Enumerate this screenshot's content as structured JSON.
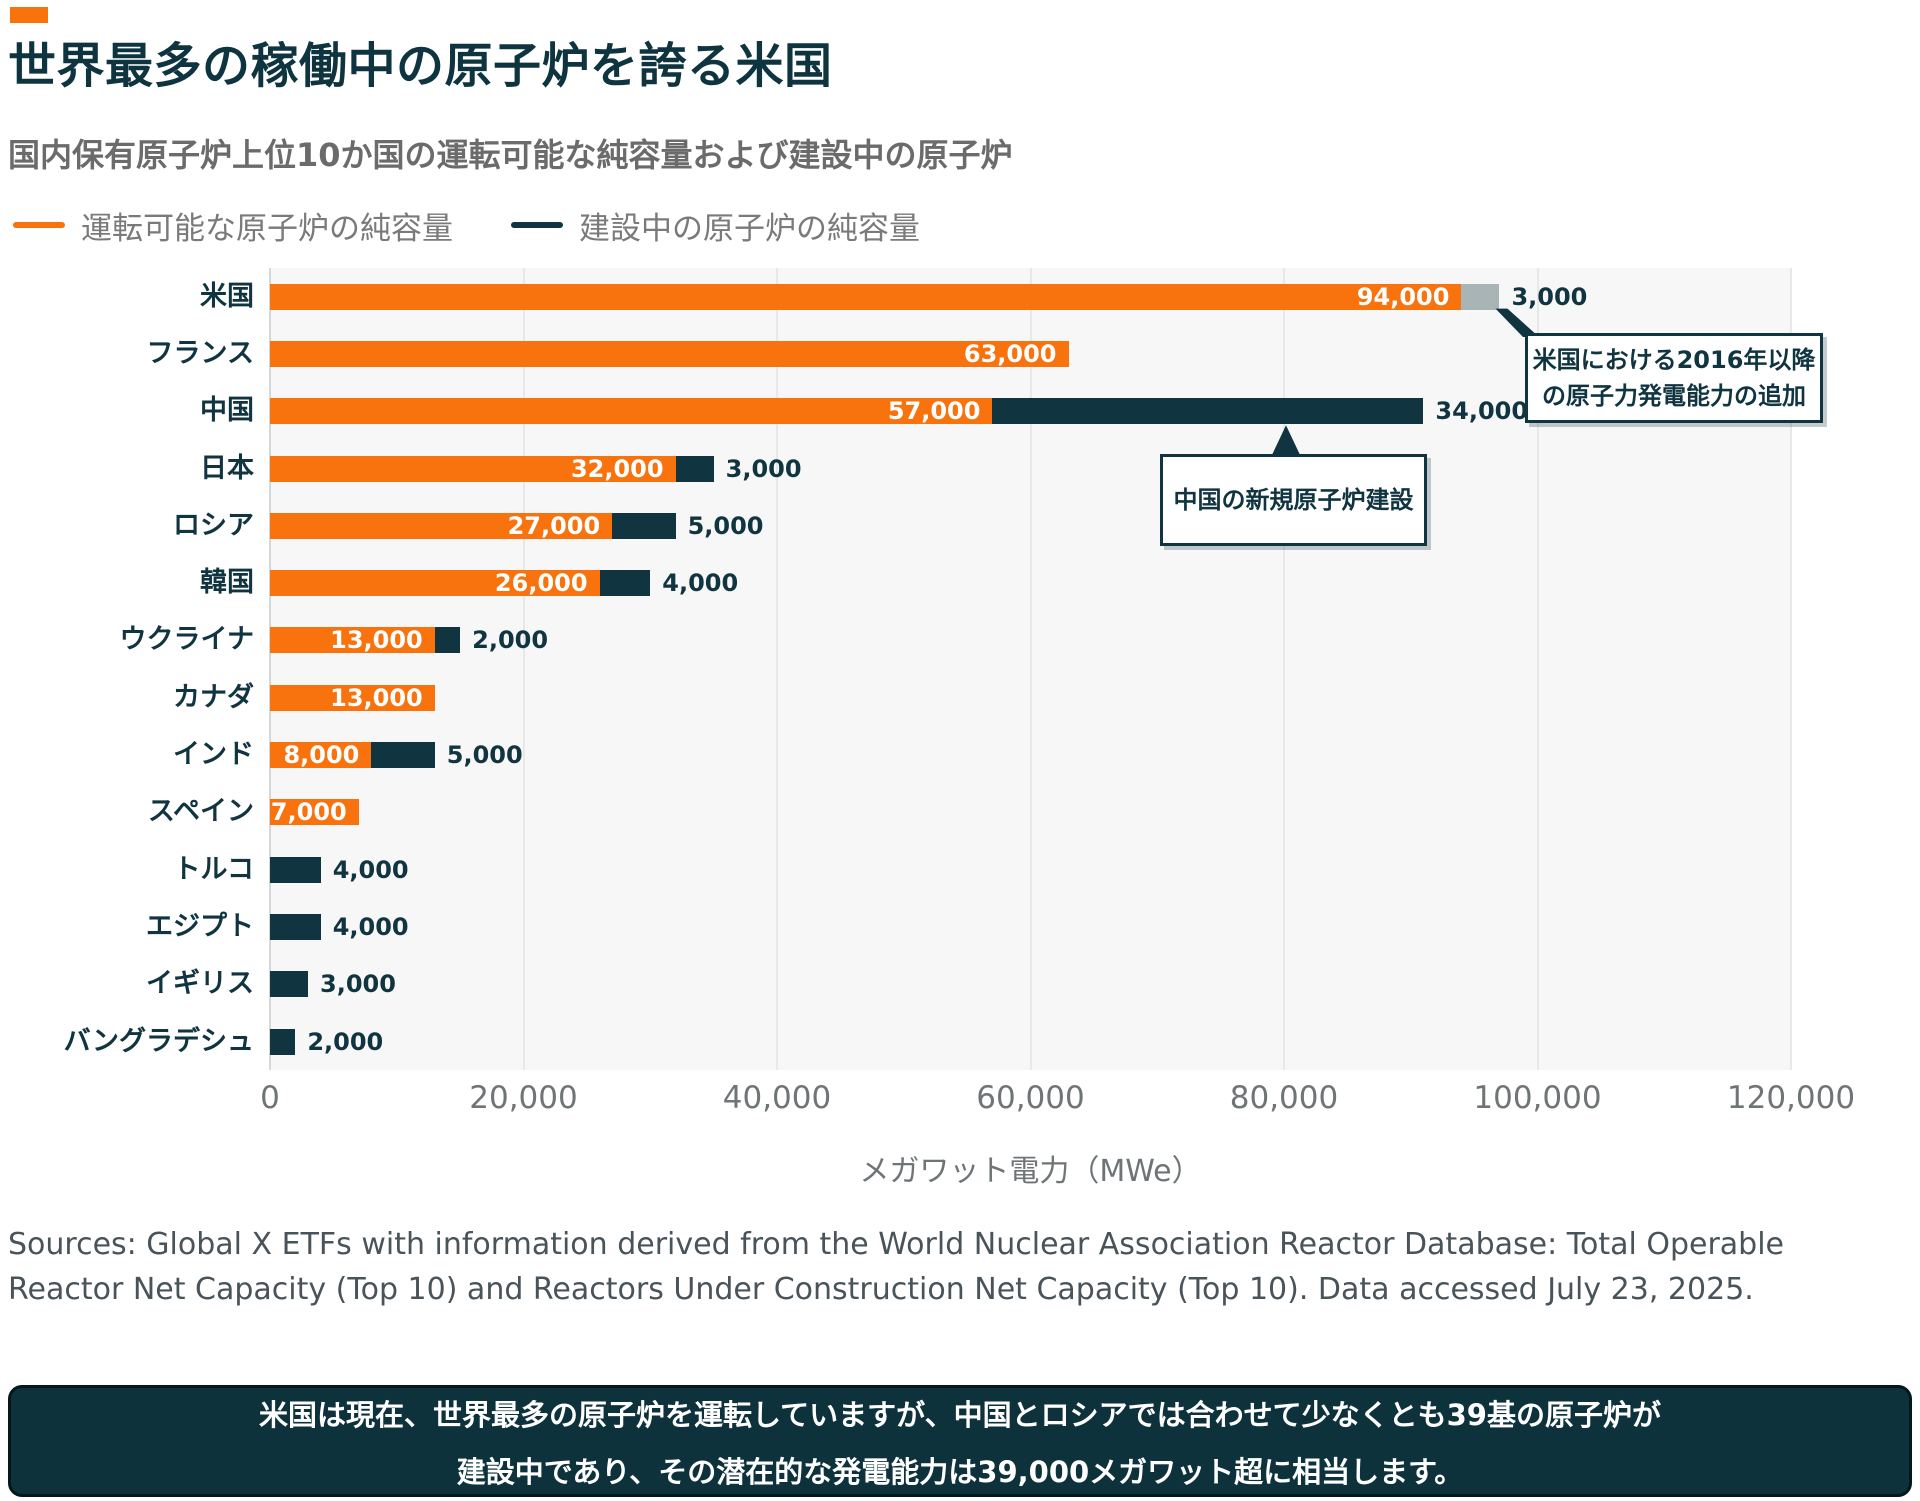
{
  "page": {
    "sources": "Sources: Global X ETFs with information derived from the World Nuclear Association Reactor Database: Total Operable Reactor Net Capacity (Top 10) and Reactors Under Construction Net Capacity (Top 10). Data accessed July 23, 2025.",
    "takeaway": {
      "line1": "米国は現在、世界最多の原子炉を運転していますが、中国とロシアでは合わせて少なくとも39基の原子炉が",
      "line2": "建設中であり、その潜在的な発電能力は39,000メガワット超に相当します。"
    }
  },
  "colors": {
    "accent_orange": "#F8720D",
    "dark_teal": "#113540",
    "title_teal": "#0E3440",
    "gray_segment": "#A9B4B6",
    "plot_bg": "#F7F7F7",
    "gridline": "#E8E8E8",
    "gridline_zero": "#D4D8D8",
    "subtitle_gray": "#6B6B6B",
    "legend_gray": "#7A7A7A",
    "tick_gray": "#6F7476",
    "sources_gray": "#49545A",
    "takeaway_bg": "#0D323C",
    "takeaway_border": "#04171D"
  },
  "chart_data": {
    "type": "bar",
    "orientation": "horizontal",
    "title": "世界最多の稼働中の原子炉を誇る米国",
    "subtitle": "国内保有原子炉上位10か国の運転可能な純容量および建設中の原子炉",
    "xlabel": "メガワット電力（MWe）",
    "unit": "MWe",
    "xlim": [
      0,
      120000
    ],
    "grid": true,
    "legend_position": "top-left",
    "xticks": [
      {
        "value": 0,
        "label": "0"
      },
      {
        "value": 20000,
        "label": "20,000"
      },
      {
        "value": 40000,
        "label": "40,000"
      },
      {
        "value": 60000,
        "label": "60,000"
      },
      {
        "value": 80000,
        "label": "80,000"
      },
      {
        "value": 100000,
        "label": "100,000"
      },
      {
        "value": 120000,
        "label": "120,000"
      }
    ],
    "series": [
      {
        "key": "operable",
        "name": "運転可能な原子炉の純容量",
        "color": "#F8720D",
        "in_legend": true
      },
      {
        "key": "construction",
        "name": "建設中の原子炉の純容量",
        "color": "#113540",
        "in_legend": true
      },
      {
        "key": "us_additions",
        "name": "米国における2016年以降の原子力発電能力の追加",
        "color": "#A9B4B6",
        "in_legend": false
      }
    ],
    "rows": [
      {
        "label": "米国",
        "segments": [
          {
            "series": "operable",
            "value": 94000,
            "label": "94,000",
            "label_inside": true
          },
          {
            "series": "us_additions",
            "value": 3000,
            "label": "3,000",
            "label_inside": false
          }
        ]
      },
      {
        "label": "フランス",
        "segments": [
          {
            "series": "operable",
            "value": 63000,
            "label": "63,000",
            "label_inside": true
          }
        ]
      },
      {
        "label": "中国",
        "segments": [
          {
            "series": "operable",
            "value": 57000,
            "label": "57,000",
            "label_inside": true
          },
          {
            "series": "construction",
            "value": 34000,
            "label": "34,000",
            "label_inside": false
          }
        ]
      },
      {
        "label": "日本",
        "segments": [
          {
            "series": "operable",
            "value": 32000,
            "label": "32,000",
            "label_inside": true
          },
          {
            "series": "construction",
            "value": 3000,
            "label": "3,000",
            "label_inside": false
          }
        ]
      },
      {
        "label": "ロシア",
        "segments": [
          {
            "series": "operable",
            "value": 27000,
            "label": "27,000",
            "label_inside": true
          },
          {
            "series": "construction",
            "value": 5000,
            "label": "5,000",
            "label_inside": false
          }
        ]
      },
      {
        "label": "韓国",
        "segments": [
          {
            "series": "operable",
            "value": 26000,
            "label": "26,000",
            "label_inside": true
          },
          {
            "series": "construction",
            "value": 4000,
            "label": "4,000",
            "label_inside": false
          }
        ]
      },
      {
        "label": "ウクライナ",
        "segments": [
          {
            "series": "operable",
            "value": 13000,
            "label": "13,000",
            "label_inside": true
          },
          {
            "series": "construction",
            "value": 2000,
            "label": "2,000",
            "label_inside": false
          }
        ]
      },
      {
        "label": "カナダ",
        "segments": [
          {
            "series": "operable",
            "value": 13000,
            "label": "13,000",
            "label_inside": true
          }
        ]
      },
      {
        "label": "インド",
        "segments": [
          {
            "series": "operable",
            "value": 8000,
            "label": "8,000",
            "label_inside": true
          },
          {
            "series": "construction",
            "value": 5000,
            "label": "5,000",
            "label_inside": false
          }
        ]
      },
      {
        "label": "スペイン",
        "segments": [
          {
            "series": "operable",
            "value": 7000,
            "label": "7,000",
            "label_inside": true
          }
        ]
      },
      {
        "label": "トルコ",
        "segments": [
          {
            "series": "construction",
            "value": 4000,
            "label": "4,000",
            "label_inside": false
          }
        ]
      },
      {
        "label": "エジプト",
        "segments": [
          {
            "series": "construction",
            "value": 4000,
            "label": "4,000",
            "label_inside": false
          }
        ]
      },
      {
        "label": "イギリス",
        "segments": [
          {
            "series": "construction",
            "value": 3000,
            "label": "3,000",
            "label_inside": false
          }
        ]
      },
      {
        "label": "バングラデシュ",
        "segments": [
          {
            "series": "construction",
            "value": 2000,
            "label": "2,000",
            "label_inside": false
          }
        ]
      }
    ],
    "annotations": [
      {
        "id": "us-additions",
        "target": "米国",
        "lines": [
          "米国における2016年以降",
          "の原子力発電能力の追加"
        ]
      },
      {
        "id": "china-construction",
        "target": "中国",
        "lines": [
          "中国の新規原子炉建設"
        ]
      }
    ]
  }
}
